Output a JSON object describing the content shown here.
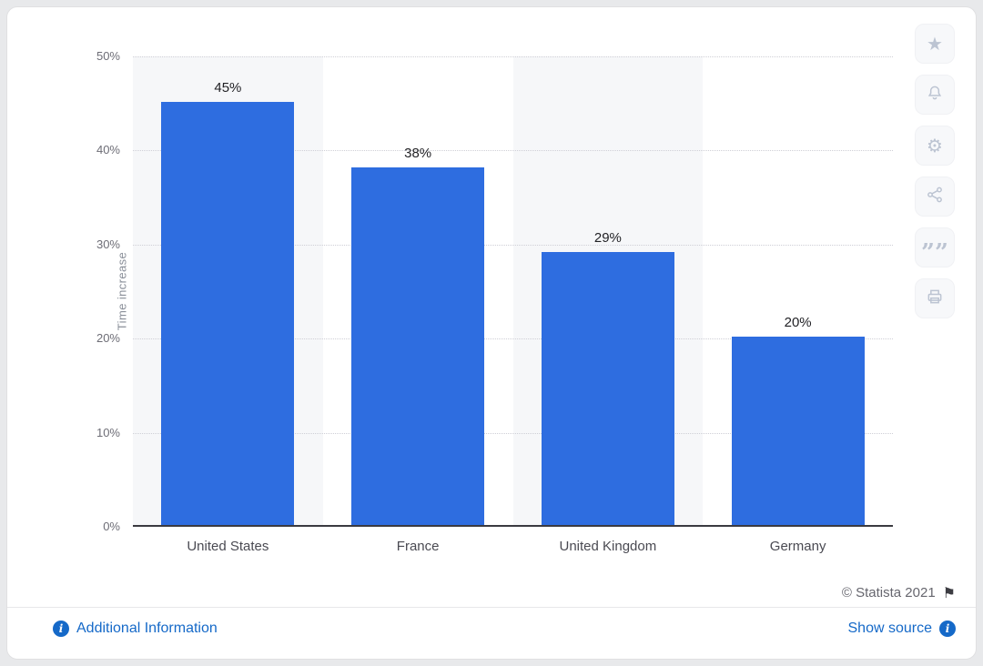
{
  "chart_data": {
    "type": "bar",
    "title": "",
    "categories": [
      "United States",
      "France",
      "United Kingdom",
      "Germany"
    ],
    "values": [
      45,
      38,
      29,
      20
    ],
    "value_labels": [
      "45%",
      "38%",
      "29%",
      "20%"
    ],
    "xlabel": "",
    "ylabel": "Time increase",
    "ylim": [
      0,
      50
    ],
    "yticks": [
      0,
      10,
      20,
      30,
      40,
      50
    ],
    "ytick_labels": [
      "0%",
      "10%",
      "20%",
      "30%",
      "40%",
      "50%"
    ],
    "grid": "horizontal-dotted",
    "legend": "none",
    "bar_color": "#2e6de0",
    "stripe_color": "#f6f7f9"
  },
  "toolbar": {
    "buttons": [
      {
        "name": "favorite",
        "icon": "star-icon"
      },
      {
        "name": "alerts",
        "icon": "bell-icon"
      },
      {
        "name": "settings",
        "icon": "gear-icon"
      },
      {
        "name": "share",
        "icon": "share-icon"
      },
      {
        "name": "cite",
        "icon": "quote-icon"
      },
      {
        "name": "print",
        "icon": "print-icon"
      }
    ]
  },
  "footer": {
    "copyright": "© Statista 2021",
    "additional_info_label": "Additional Information",
    "show_source_label": "Show source"
  },
  "colors": {
    "link": "#1569c8",
    "bar": "#2e6de0",
    "stripe": "#f6f7f9",
    "baseline": "#3a3a40"
  }
}
